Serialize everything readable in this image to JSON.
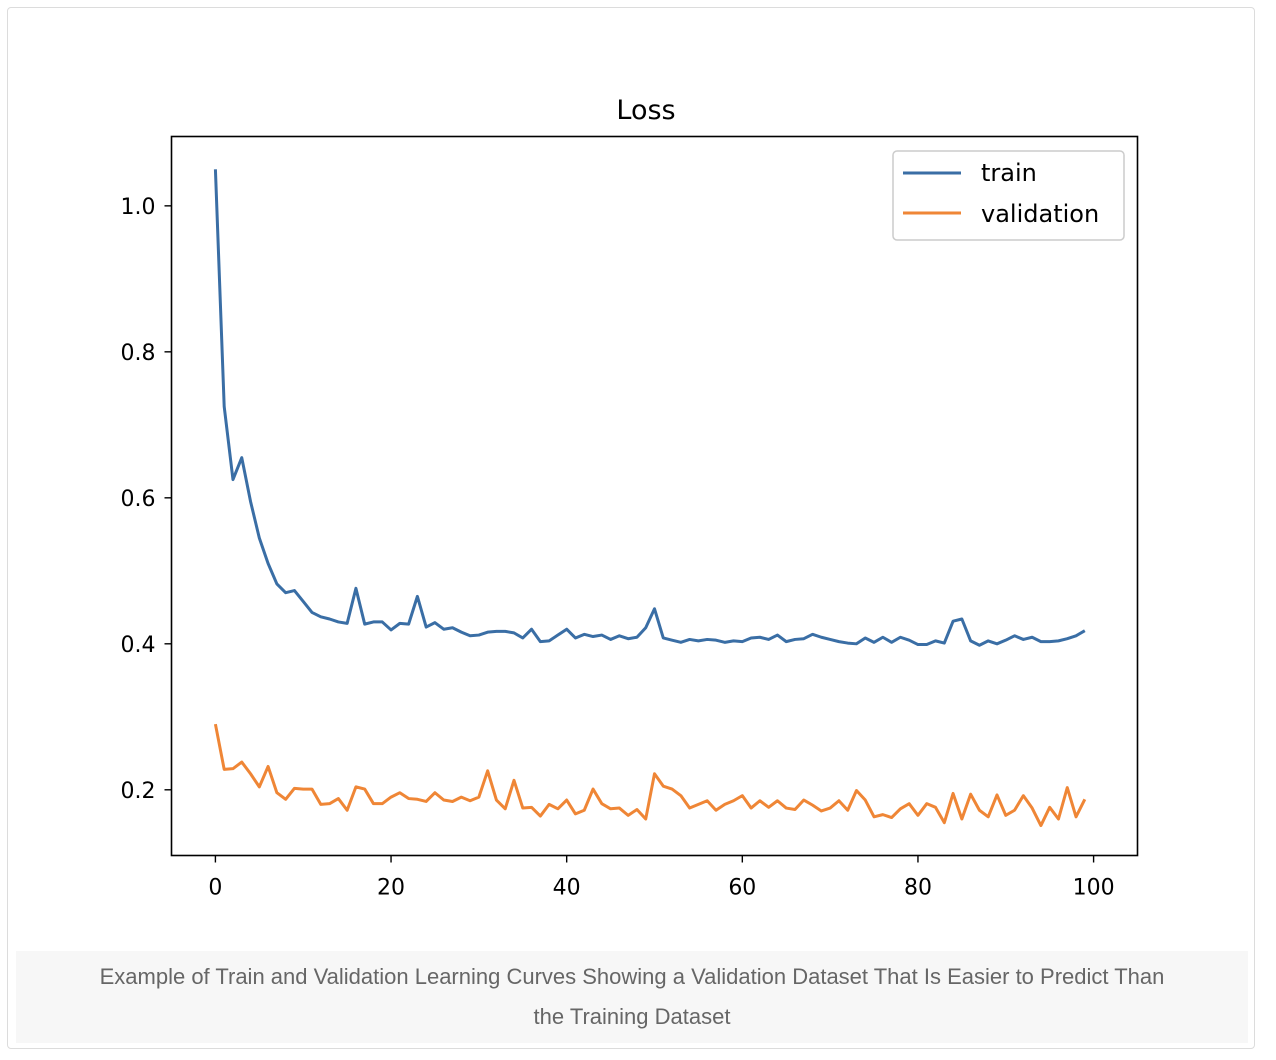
{
  "chart_data": {
    "type": "line",
    "title": "Loss",
    "xlabel": "",
    "ylabel": "",
    "xlim": [
      -5,
      105
    ],
    "ylim": [
      0.11,
      1.095
    ],
    "xticks": [
      0,
      20,
      40,
      60,
      80,
      100
    ],
    "xtick_labels": [
      "0",
      "20",
      "40",
      "60",
      "80",
      "100"
    ],
    "yticks": [
      0.2,
      0.4,
      0.6,
      0.8,
      1.0
    ],
    "ytick_labels": [
      "0.2",
      "0.4",
      "0.6",
      "0.8",
      "1.0"
    ],
    "grid": false,
    "legend_position": "top-right",
    "x": [
      0,
      1,
      2,
      3,
      4,
      5,
      6,
      7,
      8,
      9,
      10,
      11,
      12,
      13,
      14,
      15,
      16,
      17,
      18,
      19,
      20,
      21,
      22,
      23,
      24,
      25,
      26,
      27,
      28,
      29,
      30,
      31,
      32,
      33,
      34,
      35,
      36,
      37,
      38,
      39,
      40,
      41,
      42,
      43,
      44,
      45,
      46,
      47,
      48,
      49,
      50,
      51,
      52,
      53,
      54,
      55,
      56,
      57,
      58,
      59,
      60,
      61,
      62,
      63,
      64,
      65,
      66,
      67,
      68,
      69,
      70,
      71,
      72,
      73,
      74,
      75,
      76,
      77,
      78,
      79,
      80,
      81,
      82,
      83,
      84,
      85,
      86,
      87,
      88,
      89,
      90,
      91,
      92,
      93,
      94,
      95,
      96,
      97,
      98,
      99
    ],
    "series": [
      {
        "name": "train",
        "color": "#3a6ea5",
        "values": [
          1.05,
          0.725,
          0.625,
          0.655,
          0.595,
          0.545,
          0.51,
          0.482,
          0.47,
          0.473,
          0.458,
          0.443,
          0.437,
          0.434,
          0.43,
          0.428,
          0.476,
          0.427,
          0.43,
          0.43,
          0.419,
          0.428,
          0.427,
          0.465,
          0.423,
          0.429,
          0.42,
          0.422,
          0.416,
          0.411,
          0.412,
          0.416,
          0.417,
          0.417,
          0.415,
          0.408,
          0.42,
          0.403,
          0.404,
          0.412,
          0.42,
          0.408,
          0.413,
          0.41,
          0.412,
          0.406,
          0.411,
          0.407,
          0.409,
          0.422,
          0.448,
          0.408,
          0.405,
          0.402,
          0.406,
          0.404,
          0.406,
          0.405,
          0.402,
          0.404,
          0.403,
          0.408,
          0.409,
          0.406,
          0.412,
          0.403,
          0.406,
          0.407,
          0.413,
          0.409,
          0.406,
          0.403,
          0.401,
          0.4,
          0.408,
          0.402,
          0.409,
          0.402,
          0.409,
          0.405,
          0.399,
          0.399,
          0.404,
          0.401,
          0.431,
          0.434,
          0.404,
          0.398,
          0.404,
          0.4,
          0.405,
          0.411,
          0.406,
          0.409,
          0.403,
          0.403,
          0.404,
          0.407,
          0.411,
          0.418
        ]
      },
      {
        "name": "validation",
        "color": "#ef8636",
        "values": [
          0.29,
          0.228,
          0.229,
          0.238,
          0.222,
          0.204,
          0.232,
          0.196,
          0.187,
          0.202,
          0.201,
          0.201,
          0.18,
          0.181,
          0.188,
          0.172,
          0.204,
          0.201,
          0.181,
          0.181,
          0.19,
          0.196,
          0.188,
          0.187,
          0.184,
          0.196,
          0.186,
          0.184,
          0.19,
          0.185,
          0.19,
          0.226,
          0.186,
          0.174,
          0.213,
          0.175,
          0.176,
          0.164,
          0.18,
          0.174,
          0.186,
          0.167,
          0.172,
          0.201,
          0.181,
          0.174,
          0.175,
          0.165,
          0.173,
          0.16,
          0.222,
          0.205,
          0.201,
          0.192,
          0.175,
          0.18,
          0.185,
          0.172,
          0.18,
          0.185,
          0.192,
          0.175,
          0.185,
          0.176,
          0.185,
          0.175,
          0.173,
          0.186,
          0.179,
          0.171,
          0.175,
          0.185,
          0.172,
          0.199,
          0.186,
          0.163,
          0.166,
          0.162,
          0.174,
          0.181,
          0.165,
          0.181,
          0.176,
          0.155,
          0.195,
          0.16,
          0.194,
          0.172,
          0.163,
          0.193,
          0.165,
          0.172,
          0.192,
          0.175,
          0.151,
          0.176,
          0.16,
          0.203,
          0.163,
          0.187
        ]
      }
    ]
  },
  "caption": {
    "line1": "Example of Train and Validation Learning Curves Showing a Validation Dataset That Is Easier to Predict Than",
    "line2": "the Training Dataset"
  }
}
